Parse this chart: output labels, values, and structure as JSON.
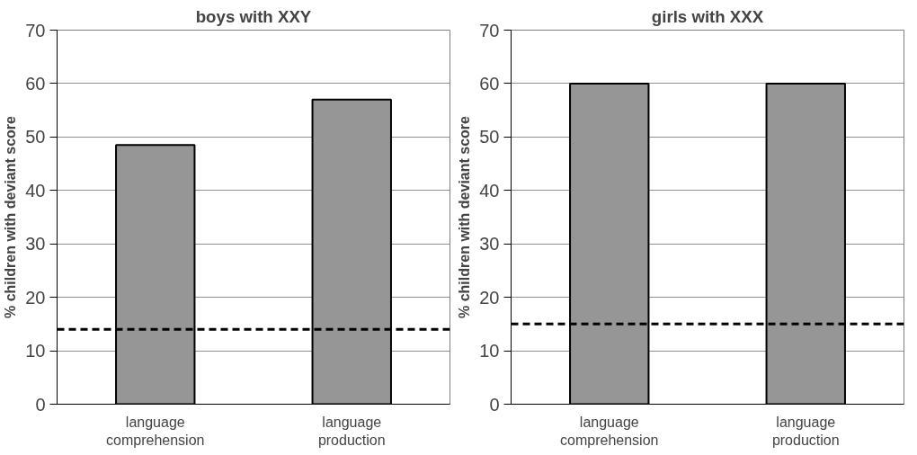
{
  "chart_data": [
    {
      "type": "bar",
      "title": "boys with XXY",
      "ylabel": "% children with deviant score",
      "categories": [
        "language comprehension",
        "language production"
      ],
      "values": [
        48.5,
        57
      ],
      "color": "#969696",
      "ylim": [
        0,
        70
      ],
      "yticks": [
        0,
        10,
        20,
        30,
        40,
        50,
        60,
        70
      ],
      "grid": "y",
      "ref_lines": [
        {
          "axis": "y",
          "value": 14,
          "color": "#000000",
          "line_style": "dashed"
        }
      ]
    },
    {
      "type": "bar",
      "title": "girls with XXX",
      "ylabel": "% children with deviant score",
      "categories": [
        "language comprehension",
        "language production"
      ],
      "values": [
        60,
        60
      ],
      "color": "#969696",
      "ylim": [
        0,
        70
      ],
      "yticks": [
        0,
        10,
        20,
        30,
        40,
        50,
        60,
        70
      ],
      "grid": "y",
      "ref_lines": [
        {
          "axis": "y",
          "value": 15,
          "color": "#000000",
          "line_style": "dashed"
        }
      ]
    }
  ]
}
